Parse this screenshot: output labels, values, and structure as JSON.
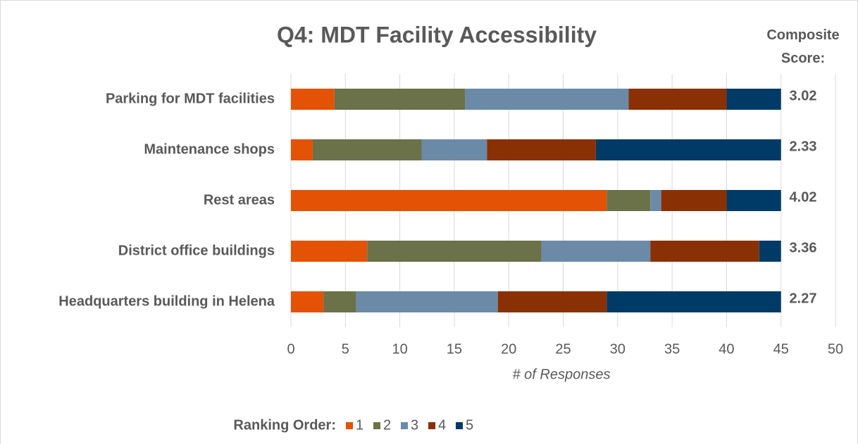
{
  "chart_data": {
    "type": "stacked_barh",
    "title": "Q4: MDT Facility Accessibility",
    "composite_label": "Composite Score:",
    "categories": [
      "Parking for MDT facilities",
      "Maintenance shops",
      "Rest areas",
      "District office buildings",
      "Headquarters building in Helena"
    ],
    "series": [
      {
        "name": "1",
        "color": "#e35205",
        "values": [
          4,
          2,
          29,
          7,
          3
        ]
      },
      {
        "name": "2",
        "color": "#6b7148",
        "values": [
          12,
          10,
          4,
          16,
          3
        ]
      },
      {
        "name": "3",
        "color": "#6a8aa8",
        "values": [
          15,
          6,
          1,
          10,
          13
        ]
      },
      {
        "name": "4",
        "color": "#8a3005",
        "values": [
          9,
          10,
          6,
          10,
          10
        ]
      },
      {
        "name": "5",
        "color": "#003a66",
        "values": [
          5,
          17,
          5,
          2,
          16
        ]
      }
    ],
    "composite_scores": [
      3.02,
      2.33,
      4.02,
      3.36,
      2.27
    ],
    "xlim": [
      0,
      50
    ],
    "xticks": [
      0,
      5,
      10,
      15,
      20,
      25,
      30,
      35,
      40,
      45,
      50
    ],
    "xlabel": "# of Responses",
    "legend_title": "Ranking Order:",
    "legend": "bottom",
    "grid": true
  }
}
